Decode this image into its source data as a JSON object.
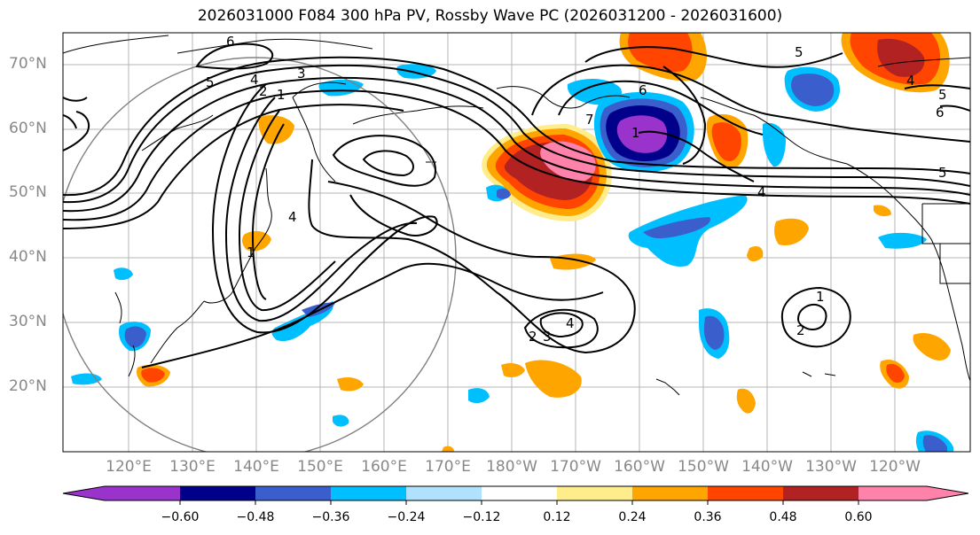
{
  "title": "2026031000 F084 300 hPa PV, Rossby Wave PC (2026031200 - 2026031600)",
  "lat_labels": [
    "70°N",
    "60°N",
    "50°N",
    "40°N",
    "30°N",
    "20°N"
  ],
  "lon_labels": [
    "120°E",
    "130°E",
    "140°E",
    "150°E",
    "160°E",
    "170°E",
    "180°W",
    "170°W",
    "160°W",
    "150°W",
    "140°W",
    "130°W",
    "120°W"
  ],
  "colorbar": {
    "colors": [
      "#9933cc",
      "#00008b",
      "#3a5fcd",
      "#00bfff",
      "#b0e2ff",
      "#ffffff",
      "#ffec8b",
      "#ffa500",
      "#ff4500",
      "#b22222",
      "#ff82ab"
    ],
    "tick_labels": [
      "−0.60",
      "−0.48",
      "−0.36",
      "−0.24",
      "−0.12",
      "0.12",
      "0.24",
      "0.36",
      "0.48",
      "0.60"
    ]
  },
  "contour_labels": [
    "6",
    "5",
    "4",
    "2",
    "1",
    "3",
    "4",
    "1",
    "2",
    "3",
    "4",
    "7",
    "6",
    "1",
    "5",
    "5",
    "6",
    "5",
    "4",
    "4",
    "1",
    "2"
  ]
}
